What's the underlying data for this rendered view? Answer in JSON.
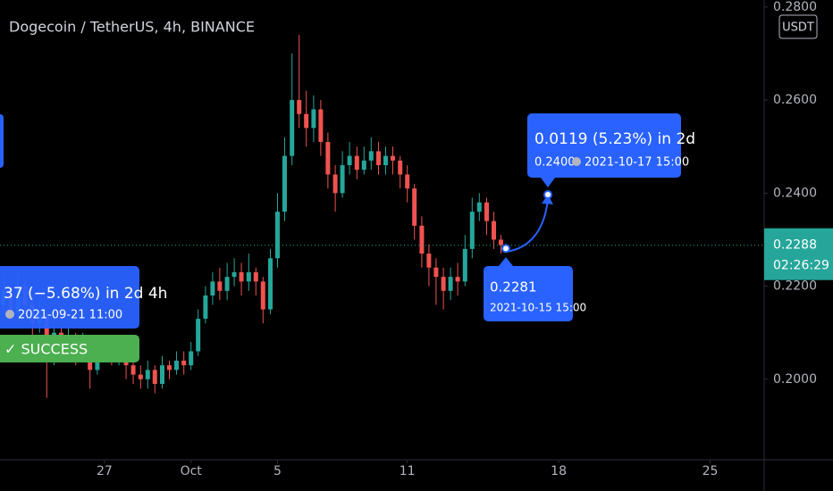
{
  "chart_data": {
    "type": "candlestick",
    "title": "Dogecoin / TetherUS, 4h, BINANCE",
    "currency": "USDT",
    "x": [
      22.33,
      22.67,
      23,
      23.33,
      23.67,
      24,
      24.33,
      24.67,
      25,
      25.33,
      25.67,
      26,
      26.33,
      26.67,
      27,
      27.33,
      27.67,
      28,
      28.33,
      28.67,
      29,
      29.33,
      29.67,
      30,
      30.33,
      30.67,
      31,
      31.33,
      31.67,
      32,
      32.33,
      32.67,
      33,
      33.33,
      33.67,
      34,
      34.33,
      34.67,
      35,
      35.33,
      35.67,
      36,
      36.33,
      36.67,
      37,
      37.33,
      37.67,
      38,
      38.33,
      38.67,
      39,
      39.33,
      39.67,
      40,
      40.33,
      40.67,
      41,
      41.33,
      41.67,
      42,
      42.33,
      42.67,
      43,
      43.33,
      43.67,
      44,
      44.33,
      44.67,
      45,
      45.33
    ],
    "open": [
      0.216,
      0.219,
      0.214,
      0.22,
      0.216,
      0.212,
      0.214,
      0.205,
      0.21,
      0.207,
      0.209,
      0.206,
      0.208,
      0.202,
      0.206,
      0.207,
      0.205,
      0.206,
      0.203,
      0.201,
      0.2,
      0.202,
      0.199,
      0.203,
      0.202,
      0.204,
      0.203,
      0.206,
      0.213,
      0.218,
      0.221,
      0.219,
      0.222,
      0.223,
      0.221,
      0.223,
      0.221,
      0.215,
      0.226,
      0.236,
      0.248,
      0.26,
      0.257,
      0.254,
      0.258,
      0.251,
      0.244,
      0.24,
      0.246,
      0.248,
      0.245,
      0.247,
      0.249,
      0.246,
      0.248,
      0.247,
      0.244,
      0.241,
      0.233,
      0.227,
      0.224,
      0.222,
      0.219,
      0.222,
      0.221,
      0.228,
      0.236,
      0.238,
      0.234,
      0.23
    ],
    "high": [
      0.222,
      0.221,
      0.223,
      0.222,
      0.218,
      0.217,
      0.215,
      0.212,
      0.212,
      0.211,
      0.21,
      0.21,
      0.209,
      0.208,
      0.209,
      0.208,
      0.208,
      0.207,
      0.204,
      0.203,
      0.204,
      0.203,
      0.205,
      0.204,
      0.206,
      0.206,
      0.208,
      0.215,
      0.22,
      0.223,
      0.224,
      0.225,
      0.226,
      0.225,
      0.227,
      0.224,
      0.222,
      0.228,
      0.24,
      0.252,
      0.27,
      0.274,
      0.262,
      0.261,
      0.26,
      0.253,
      0.246,
      0.249,
      0.251,
      0.25,
      0.25,
      0.252,
      0.251,
      0.25,
      0.25,
      0.248,
      0.246,
      0.242,
      0.235,
      0.229,
      0.226,
      0.224,
      0.224,
      0.225,
      0.231,
      0.239,
      0.24,
      0.239,
      0.236,
      0.231
    ],
    "low": [
      0.214,
      0.212,
      0.212,
      0.214,
      0.209,
      0.21,
      0.196,
      0.203,
      0.204,
      0.205,
      0.203,
      0.204,
      0.198,
      0.201,
      0.204,
      0.203,
      0.203,
      0.2,
      0.199,
      0.198,
      0.198,
      0.197,
      0.198,
      0.2,
      0.201,
      0.201,
      0.202,
      0.205,
      0.212,
      0.216,
      0.217,
      0.217,
      0.22,
      0.218,
      0.219,
      0.218,
      0.212,
      0.214,
      0.224,
      0.234,
      0.246,
      0.254,
      0.25,
      0.251,
      0.248,
      0.241,
      0.236,
      0.239,
      0.244,
      0.243,
      0.244,
      0.245,
      0.244,
      0.244,
      0.244,
      0.241,
      0.238,
      0.23,
      0.224,
      0.22,
      0.216,
      0.215,
      0.217,
      0.218,
      0.22,
      0.226,
      0.234,
      0.231,
      0.228,
      0.227
    ],
    "close": [
      0.219,
      0.214,
      0.22,
      0.216,
      0.212,
      0.214,
      0.205,
      0.21,
      0.207,
      0.209,
      0.206,
      0.208,
      0.202,
      0.206,
      0.207,
      0.205,
      0.206,
      0.203,
      0.201,
      0.2,
      0.202,
      0.199,
      0.203,
      0.202,
      0.204,
      0.203,
      0.206,
      0.213,
      0.218,
      0.221,
      0.219,
      0.222,
      0.223,
      0.221,
      0.223,
      0.221,
      0.215,
      0.226,
      0.236,
      0.248,
      0.26,
      0.257,
      0.254,
      0.258,
      0.251,
      0.244,
      0.24,
      0.246,
      0.248,
      0.245,
      0.247,
      0.249,
      0.246,
      0.248,
      0.247,
      0.244,
      0.241,
      0.233,
      0.227,
      0.224,
      0.222,
      0.219,
      0.222,
      0.221,
      0.228,
      0.236,
      0.238,
      0.234,
      0.23,
      0.2288
    ],
    "up_color": "#26a69a",
    "down_color": "#ef5350",
    "xlim": [
      22.17,
      57.5
    ],
    "xticks": [
      27,
      {
        "value": 31,
        "label": "Oct"
      },
      {
        "value": 35,
        "label": "5"
      },
      {
        "value": 41,
        "label": "11"
      },
      {
        "value": 48,
        "label": "18"
      },
      {
        "value": 55,
        "label": "25"
      }
    ],
    "ylim": [
      0.1827,
      0.2815
    ],
    "yticks": [
      {
        "value": 0.28,
        "label": "0.2800"
      },
      {
        "value": 0.26,
        "label": "0.2600"
      },
      {
        "value": 0.24,
        "label": "0.2400"
      },
      {
        "value": 0.22,
        "label": "0.2200"
      },
      {
        "value": 0.2,
        "label": "0.2000"
      }
    ],
    "last_price": 0.2288,
    "countdown": "02:26:29",
    "annotations": {
      "left_box": {
        "text": "37 (−5.68%) in 2d 4h",
        "date": "2021-09-21  11:00",
        "status": "✓ SUCCESS"
      },
      "measure": {
        "text": "0.0119 (5.23%) in 2d",
        "price": "0.2400",
        "date": "2021-10-17  15:00"
      },
      "point": {
        "price": 0.2281,
        "date": "2021-10-15 15:00"
      }
    }
  }
}
